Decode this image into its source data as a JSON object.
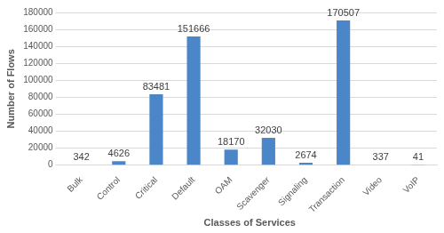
{
  "chart_data": {
    "type": "bar",
    "x_label": "Classes of Services",
    "y_label": "Number of Flows",
    "categories": [
      "Bulk",
      "Control",
      "Critical",
      "Default",
      "OAM",
      "Scavenger",
      "Signaling",
      "Transaction",
      "Video",
      "VoIP"
    ],
    "values": [
      342,
      4626,
      83481,
      151666,
      18170,
      32030,
      2674,
      170507,
      337,
      41
    ],
    "color": "#4a86c8",
    "ylim": [
      0,
      180000
    ],
    "yticks": [
      0,
      20000,
      40000,
      60000,
      80000,
      100000,
      120000,
      140000,
      160000,
      180000
    ],
    "grid": true,
    "data_labels": true
  }
}
